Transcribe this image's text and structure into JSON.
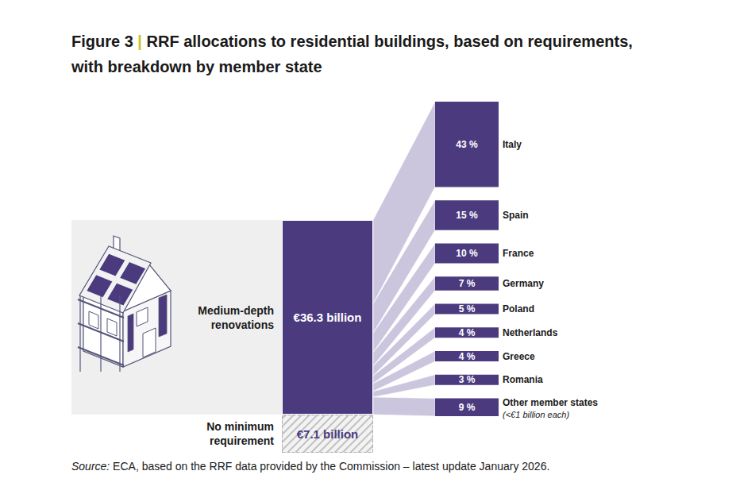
{
  "chart_data": {
    "type": "bar",
    "title": "Figure 3 | RRF allocations to residential buildings, based on requirements, with breakdown by member state",
    "categories": [
      "Medium-depth renovations",
      "No minimum requirement"
    ],
    "values": [
      36.3,
      7.1
    ],
    "value_labels": [
      "€36.3 billion",
      "€7.1 billion"
    ],
    "colors": [
      "#4b3b7e",
      "#f3f3f3"
    ],
    "stacked": true,
    "data_labels": true,
    "tick_labels": false,
    "breakdown": {
      "categories": [
        "Italy",
        "Spain",
        "France",
        "Germany",
        "Poland",
        "Netherlands",
        "Greece",
        "Romania",
        "Other member states"
      ],
      "values": [
        43,
        15,
        10,
        7,
        5,
        4,
        4,
        3,
        9
      ],
      "value_labels": [
        "43 %",
        "15 %",
        "10 %",
        "7 %",
        "5 %",
        "4 %",
        "4 %",
        "3 %",
        "9 %"
      ],
      "color": "#4b3b7e",
      "annotation": "(<€1 billion each)"
    },
    "source": "Source: ECA, based on the RRF data provided by the Commission – latest update January 2026."
  }
}
